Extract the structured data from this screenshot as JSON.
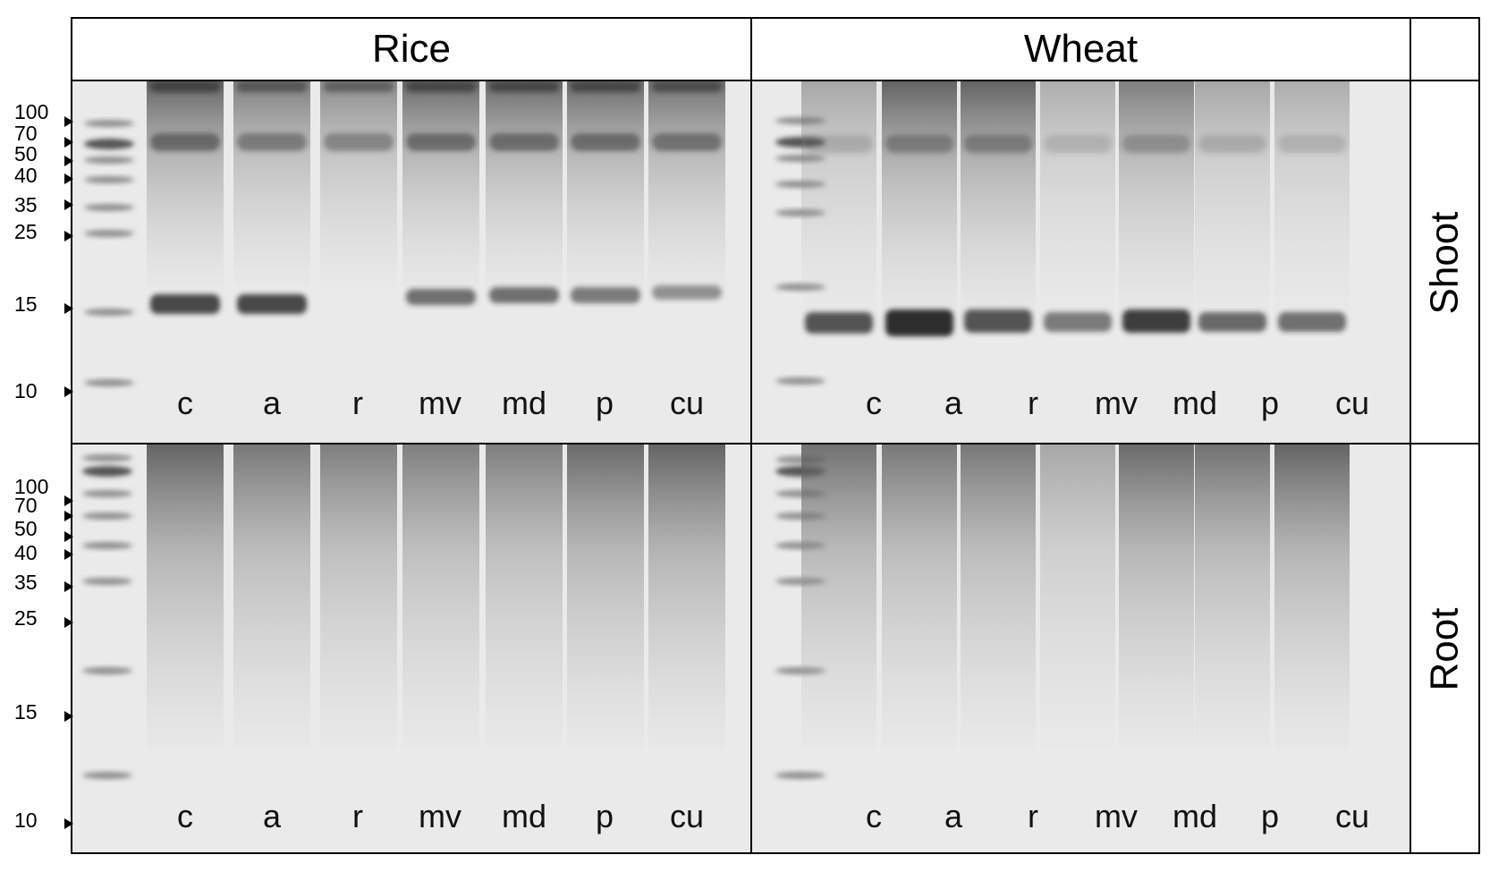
{
  "columns": [
    "Rice",
    "Wheat"
  ],
  "rows": [
    "Shoot",
    "Root"
  ],
  "markers": [
    "100",
    "70",
    "50",
    "40",
    "35",
    "25",
    "15",
    "10"
  ],
  "lanes": [
    "c",
    "a",
    "r",
    "mv",
    "md",
    "p",
    "cu"
  ],
  "colors": {
    "frame": "#000000",
    "gel_background": "#eaeaea",
    "band": "#3a3a3a"
  }
}
